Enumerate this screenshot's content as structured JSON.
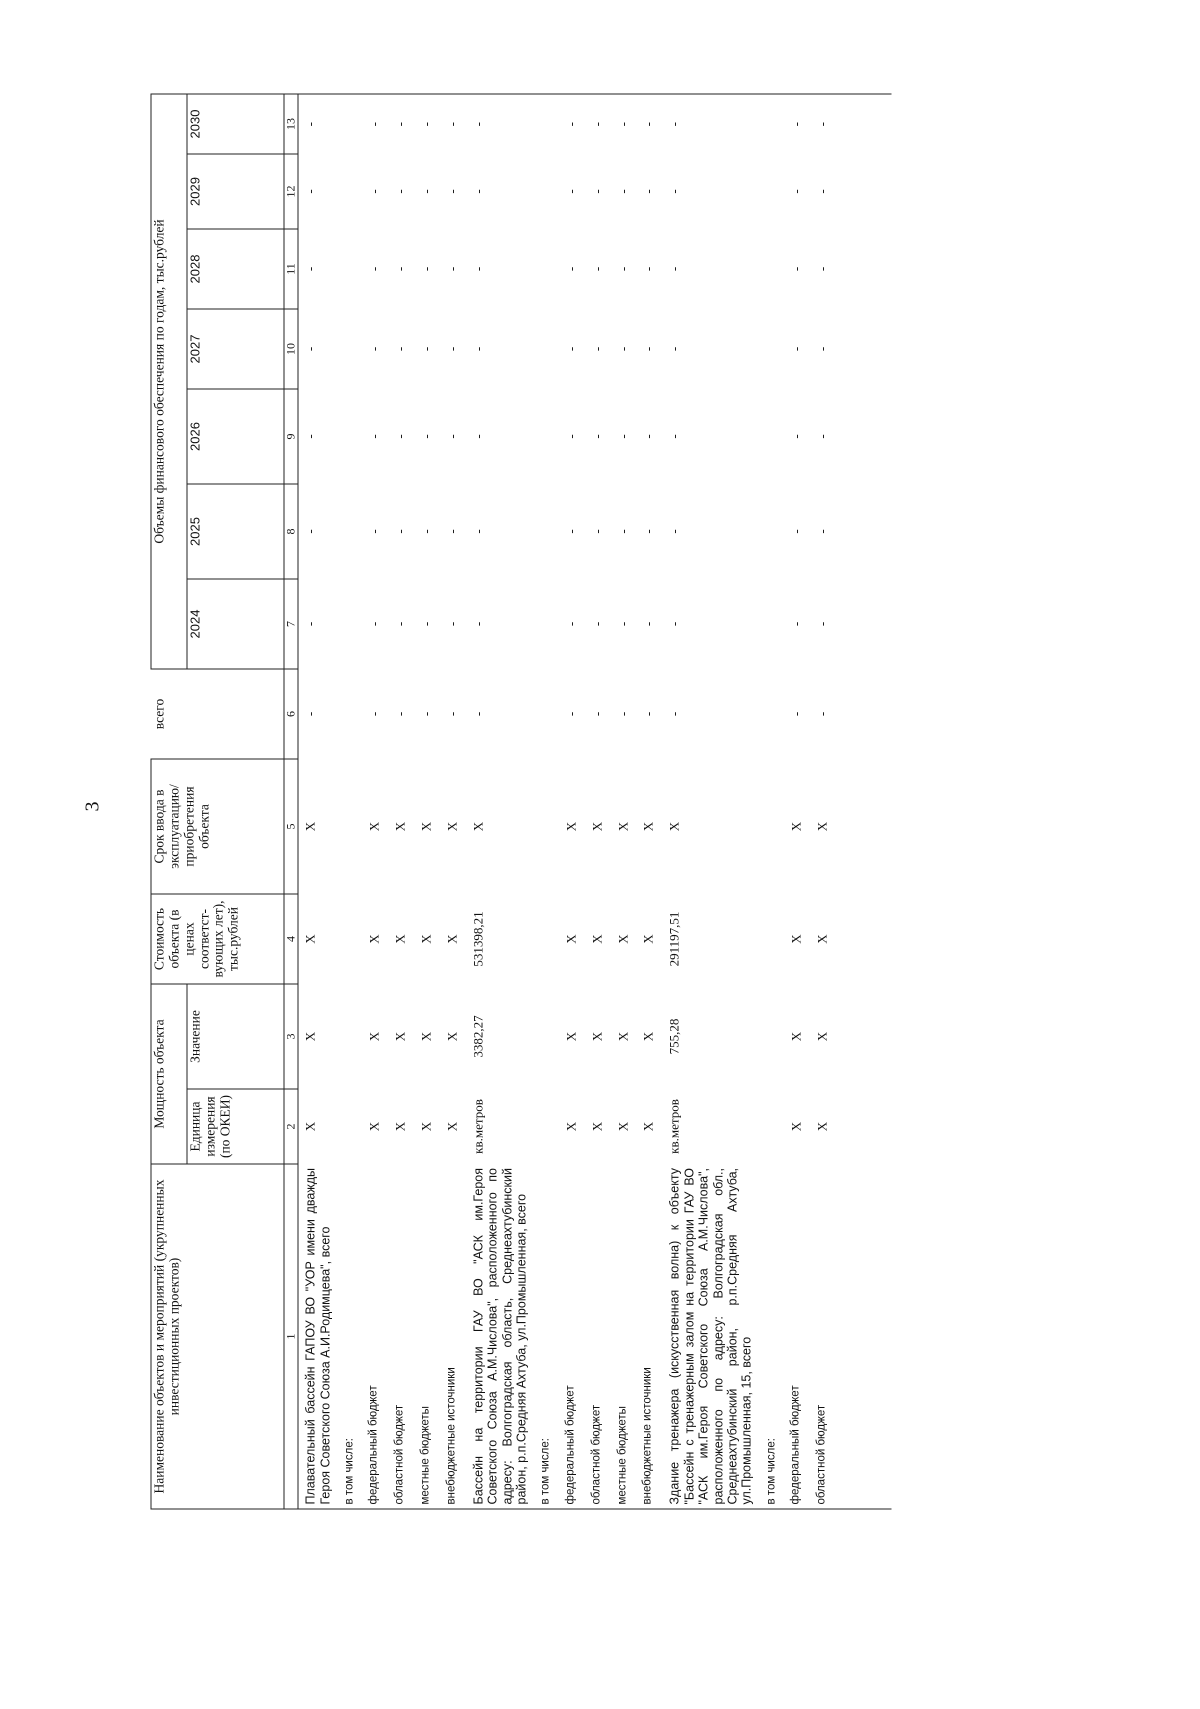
{
  "page_number": "3",
  "header": {
    "col1": "Наименование объектов и мероприятий (укрупненных инвестиционных проектов)",
    "capacity_group": "Мощность объекта",
    "col2": "Единица измерения (по ОКЕИ)",
    "col3": "Значение",
    "col4": "Стоимость объекта (в ценах соответст-вующих лет), тыс.рублей",
    "col5": "Срок ввода в эксплуатацию/ приобретения объекта",
    "finance_group": "Объемы финансового обеспечения по годам, тыс.рублей",
    "col6": "всего",
    "years": [
      "2024",
      "2025",
      "2026",
      "2027",
      "2028",
      "2029",
      "2030"
    ],
    "numbers": [
      "1",
      "2",
      "3",
      "4",
      "5",
      "6",
      "7",
      "8",
      "9",
      "10",
      "11",
      "12",
      "13"
    ]
  },
  "rows": [
    {
      "name": "Плавательный бассейн ГАПОУ ВО \"УОР имени дважды Героя Советского Союза А.И.Родимцева\", всего",
      "cells": [
        "X",
        "X",
        "X",
        "X",
        "-",
        "-",
        "-",
        "-",
        "-",
        "-",
        "-",
        "-"
      ]
    },
    {
      "name": "в том числе:",
      "small": true,
      "cells": [
        "",
        "",
        "",
        "",
        "",
        "",
        "",
        "",
        "",
        "",
        "",
        ""
      ]
    },
    {
      "name": "федеральный бюджет",
      "small": true,
      "cells": [
        "X",
        "X",
        "X",
        "X",
        "-",
        "-",
        "-",
        "-",
        "-",
        "-",
        "-",
        "-"
      ]
    },
    {
      "name": "областной бюджет",
      "small": true,
      "cells": [
        "X",
        "X",
        "X",
        "X",
        "-",
        "-",
        "-",
        "-",
        "-",
        "-",
        "-",
        "-"
      ]
    },
    {
      "name": "местные бюджеты",
      "small": true,
      "cells": [
        "X",
        "X",
        "X",
        "X",
        "-",
        "-",
        "-",
        "-",
        "-",
        "-",
        "-",
        "-"
      ]
    },
    {
      "name": "внебюджетные источники",
      "small": true,
      "cells": [
        "X",
        "X",
        "X",
        "X",
        "-",
        "-",
        "-",
        "-",
        "-",
        "-",
        "-",
        "-"
      ]
    },
    {
      "name": "Бассейн на территории ГАУ ВО \"АСК им.Героя Советского Союза А.М.Числова\", расположенного по адресу: Волгоградская область, Среднеахтубинский район, р.п.Средняя Ахтуба, ул.Промышленная, всего",
      "cells": [
        "кв.метров",
        "3382,27",
        "531398,21",
        "X",
        "-",
        "-",
        "-",
        "-",
        "-",
        "-",
        "-",
        "-"
      ]
    },
    {
      "name": "в том числе:",
      "small": true,
      "cells": [
        "",
        "",
        "",
        "",
        "",
        "",
        "",
        "",
        "",
        "",
        "",
        ""
      ]
    },
    {
      "name": "федеральный бюджет",
      "small": true,
      "cells": [
        "X",
        "X",
        "X",
        "X",
        "-",
        "-",
        "-",
        "-",
        "-",
        "-",
        "-",
        "-"
      ]
    },
    {
      "name": "областной бюджет",
      "small": true,
      "cells": [
        "X",
        "X",
        "X",
        "X",
        "-",
        "-",
        "-",
        "-",
        "-",
        "-",
        "-",
        "-"
      ]
    },
    {
      "name": "местные бюджеты",
      "small": true,
      "cells": [
        "X",
        "X",
        "X",
        "X",
        "-",
        "-",
        "-",
        "-",
        "-",
        "-",
        "-",
        "-"
      ]
    },
    {
      "name": "внебюджетные источники",
      "small": true,
      "cells": [
        "X",
        "X",
        "X",
        "X",
        "-",
        "-",
        "-",
        "-",
        "-",
        "-",
        "-",
        "-"
      ]
    },
    {
      "name": "Здание тренажера (искусственная волна) к объекту \"Бассейн с тренажерным залом на территории ГАУ ВО \"АСК им.Героя Советского Союза А.М.Числова\", расположенного по адресу: Волгоградская обл., Среднеахтубинский район, р.п.Средняя Ахтуба, ул.Промышленная, 15, всего",
      "cells": [
        "кв.метров",
        "755,28",
        "291197,51",
        "X",
        "-",
        "-",
        "-",
        "-",
        "-",
        "-",
        "-",
        "-"
      ]
    },
    {
      "name": "в том числе:",
      "small": true,
      "cells": [
        "",
        "",
        "",
        "",
        "",
        "",
        "",
        "",
        "",
        "",
        "",
        ""
      ]
    },
    {
      "name": "федеральный бюджет",
      "small": true,
      "cells": [
        "X",
        "X",
        "X",
        "X",
        "-",
        "-",
        "-",
        "-",
        "-",
        "-",
        "-",
        "-"
      ]
    },
    {
      "name": "областной бюджет",
      "small": true,
      "cells": [
        "X",
        "X",
        "X",
        "X",
        "-",
        "-",
        "-",
        "-",
        "-",
        "-",
        "-",
        "-"
      ]
    }
  ]
}
